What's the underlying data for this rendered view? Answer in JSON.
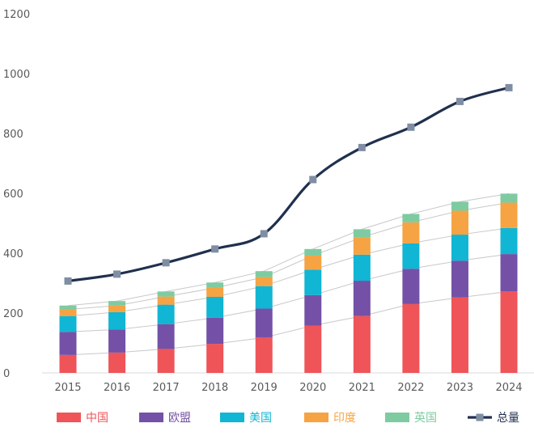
{
  "chart_data": {
    "type": "bar",
    "stacked": true,
    "categories": [
      "2015",
      "2016",
      "2017",
      "2018",
      "2019",
      "2020",
      "2021",
      "2022",
      "2023",
      "2024"
    ],
    "series": [
      {
        "name": "中国",
        "color": "#ef5459",
        "values": [
          60,
          68,
          80,
          97,
          118,
          158,
          190,
          230,
          252,
          272
        ]
      },
      {
        "name": "欧盟",
        "color": "#7451a6",
        "values": [
          77,
          77,
          83,
          87,
          97,
          102,
          118,
          118,
          123,
          125
        ]
      },
      {
        "name": "美国",
        "color": "#10b6d3",
        "values": [
          53,
          58,
          65,
          70,
          75,
          85,
          87,
          85,
          87,
          87
        ]
      },
      {
        "name": "印度",
        "color": "#f6a343",
        "values": [
          22,
          22,
          27,
          30,
          30,
          47,
          58,
          70,
          80,
          85
        ]
      },
      {
        "name": "英国",
        "color": "#7ecba1",
        "values": [
          13,
          15,
          17,
          18,
          20,
          22,
          27,
          28,
          30,
          30
        ]
      }
    ],
    "line_series": {
      "name": "总量",
      "color": "#20304e",
      "marker_color": "#7f8ea3",
      "values": [
        307,
        330,
        368,
        414,
        465,
        646,
        753,
        821,
        907,
        953
      ]
    },
    "yticks": [
      0,
      200,
      400,
      600,
      800,
      1000,
      1200
    ],
    "ylim": [
      0,
      1200
    ],
    "grid": false,
    "connector_lines": true,
    "legend_position": "bottom"
  }
}
